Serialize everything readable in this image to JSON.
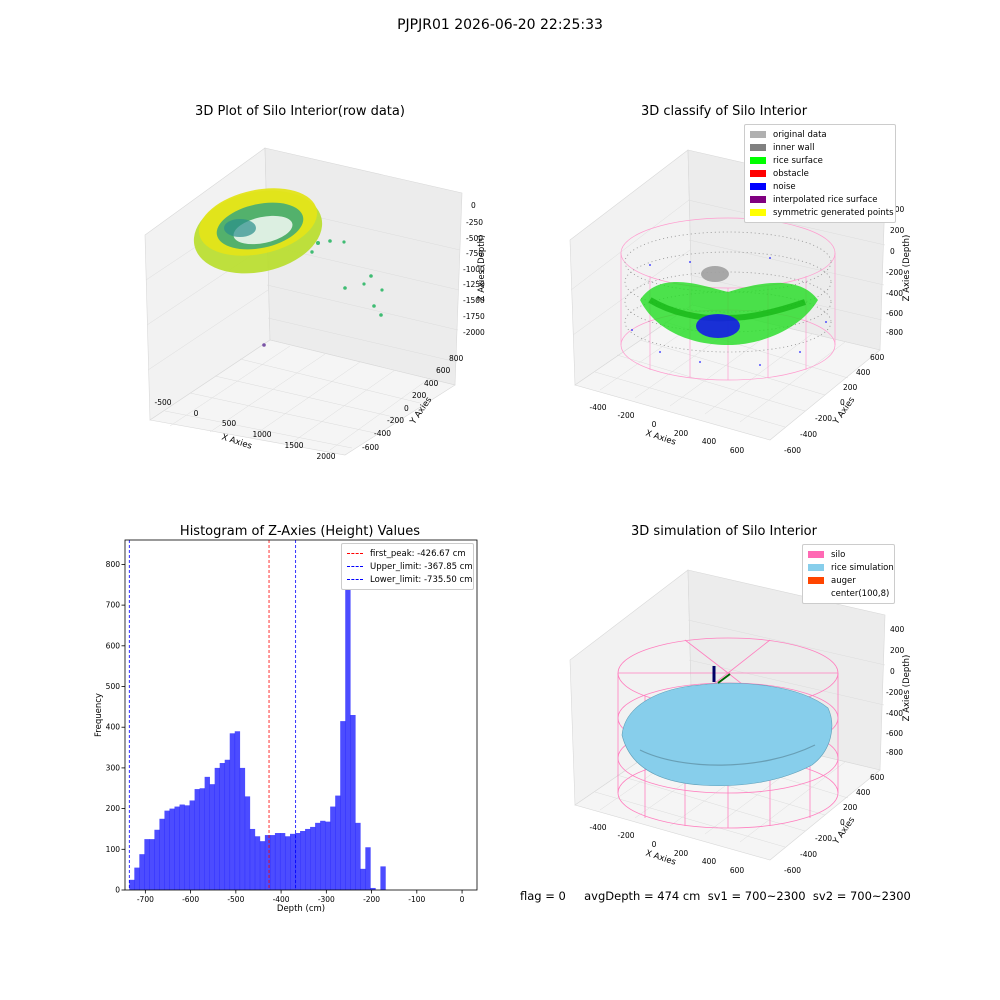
{
  "figure": {
    "suptitle": "PJPJR01 2026-06-20 22:25:33",
    "status_line": "flag = 0     avgDepth = 474 cm  sv1 = 700~2300  sv2 = 700~2300"
  },
  "chart_data": [
    {
      "type": "scatter",
      "title": "3D Plot of Silo Interior(row data)",
      "xlabel": "X Axies",
      "ylabel": "Y Axies",
      "zlabel": "Z Axies (Depth)",
      "x_ticks": [
        "-500",
        "0",
        "500",
        "1000",
        "1500",
        "2000"
      ],
      "y_ticks": [
        "-600",
        "-400",
        "-200",
        "0",
        "200",
        "400",
        "600",
        "800"
      ],
      "z_ticks": [
        "0",
        "-250",
        "-500",
        "-750",
        "-1000",
        "-1250",
        "-1500",
        "-1750",
        "-2000"
      ],
      "colormap": "viridis"
    },
    {
      "type": "scatter",
      "title": "3D classify of Silo Interior",
      "xlabel": "X Axies",
      "ylabel": "Y Axies",
      "zlabel": "Z Axies (Depth)",
      "x_ticks": [
        "-400",
        "-200",
        "0",
        "200",
        "400",
        "600"
      ],
      "y_ticks": [
        "-600",
        "-400",
        "-200",
        "0",
        "200",
        "400",
        "600"
      ],
      "z_ticks": [
        "400",
        "200",
        "0",
        "-200",
        "-400",
        "-600",
        "-800"
      ],
      "legend": [
        {
          "label": "original data",
          "color": "#b0b0b0"
        },
        {
          "label": "inner wall",
          "color": "#808080"
        },
        {
          "label": "rice surface",
          "color": "#00ff00"
        },
        {
          "label": "obstacle",
          "color": "#ff0000"
        },
        {
          "label": "noise",
          "color": "#0000ff"
        },
        {
          "label": "interpolated rice surface",
          "color": "#800080"
        },
        {
          "label": "symmetric generated points",
          "color": "#ffff00"
        }
      ]
    },
    {
      "type": "bar",
      "title": "Histogram of Z-Axies (Height) Values",
      "xlabel": "Depth (cm)",
      "ylabel": "Frequency",
      "xlim": [
        -745,
        33
      ],
      "ylim": [
        0,
        860
      ],
      "x_ticks": [
        -700,
        -600,
        -500,
        -400,
        -300,
        -200,
        -100,
        0
      ],
      "y_ticks": [
        0,
        100,
        200,
        300,
        400,
        500,
        600,
        700,
        800
      ],
      "bin_edges_start": -735.5,
      "bin_width": 11.1,
      "values": [
        25,
        55,
        88,
        125,
        125,
        148,
        175,
        195,
        200,
        205,
        210,
        208,
        220,
        248,
        250,
        278,
        260,
        300,
        312,
        320,
        385,
        390,
        300,
        230,
        150,
        132,
        120,
        135,
        135,
        140,
        140,
        132,
        138,
        140,
        145,
        150,
        155,
        165,
        170,
        168,
        205,
        232,
        415,
        810,
        430,
        165,
        52,
        105,
        5,
        0,
        58
      ],
      "bar_color": "#0000ff",
      "vlines": [
        {
          "label": "first_peak: -426.67 cm",
          "x": -426.67,
          "color": "#ff0000"
        },
        {
          "label": "Upper_limit: -367.85 cm",
          "x": -367.85,
          "color": "#0000ff"
        },
        {
          "label": "Lower_limit: -735.50 cm",
          "x": -735.5,
          "color": "#0000ff"
        }
      ]
    },
    {
      "type": "scatter",
      "title": "3D simulation of Silo Interior",
      "xlabel": "X Axies",
      "ylabel": "Y Axies",
      "zlabel": "Z Axies (Depth)",
      "x_ticks": [
        "-400",
        "-200",
        "0",
        "200",
        "400",
        "600"
      ],
      "y_ticks": [
        "-600",
        "-400",
        "-200",
        "0",
        "200",
        "400",
        "600"
      ],
      "z_ticks": [
        "400",
        "200",
        "0",
        "-200",
        "-400",
        "-600",
        "-800"
      ],
      "legend": [
        {
          "label": "silo",
          "color": "#ff69b4"
        },
        {
          "label": "rice simulation",
          "color": "#87ceeb"
        },
        {
          "label": "auger",
          "color": "#ff4500"
        },
        {
          "label": "center(100,8)",
          "color": ""
        }
      ]
    }
  ]
}
